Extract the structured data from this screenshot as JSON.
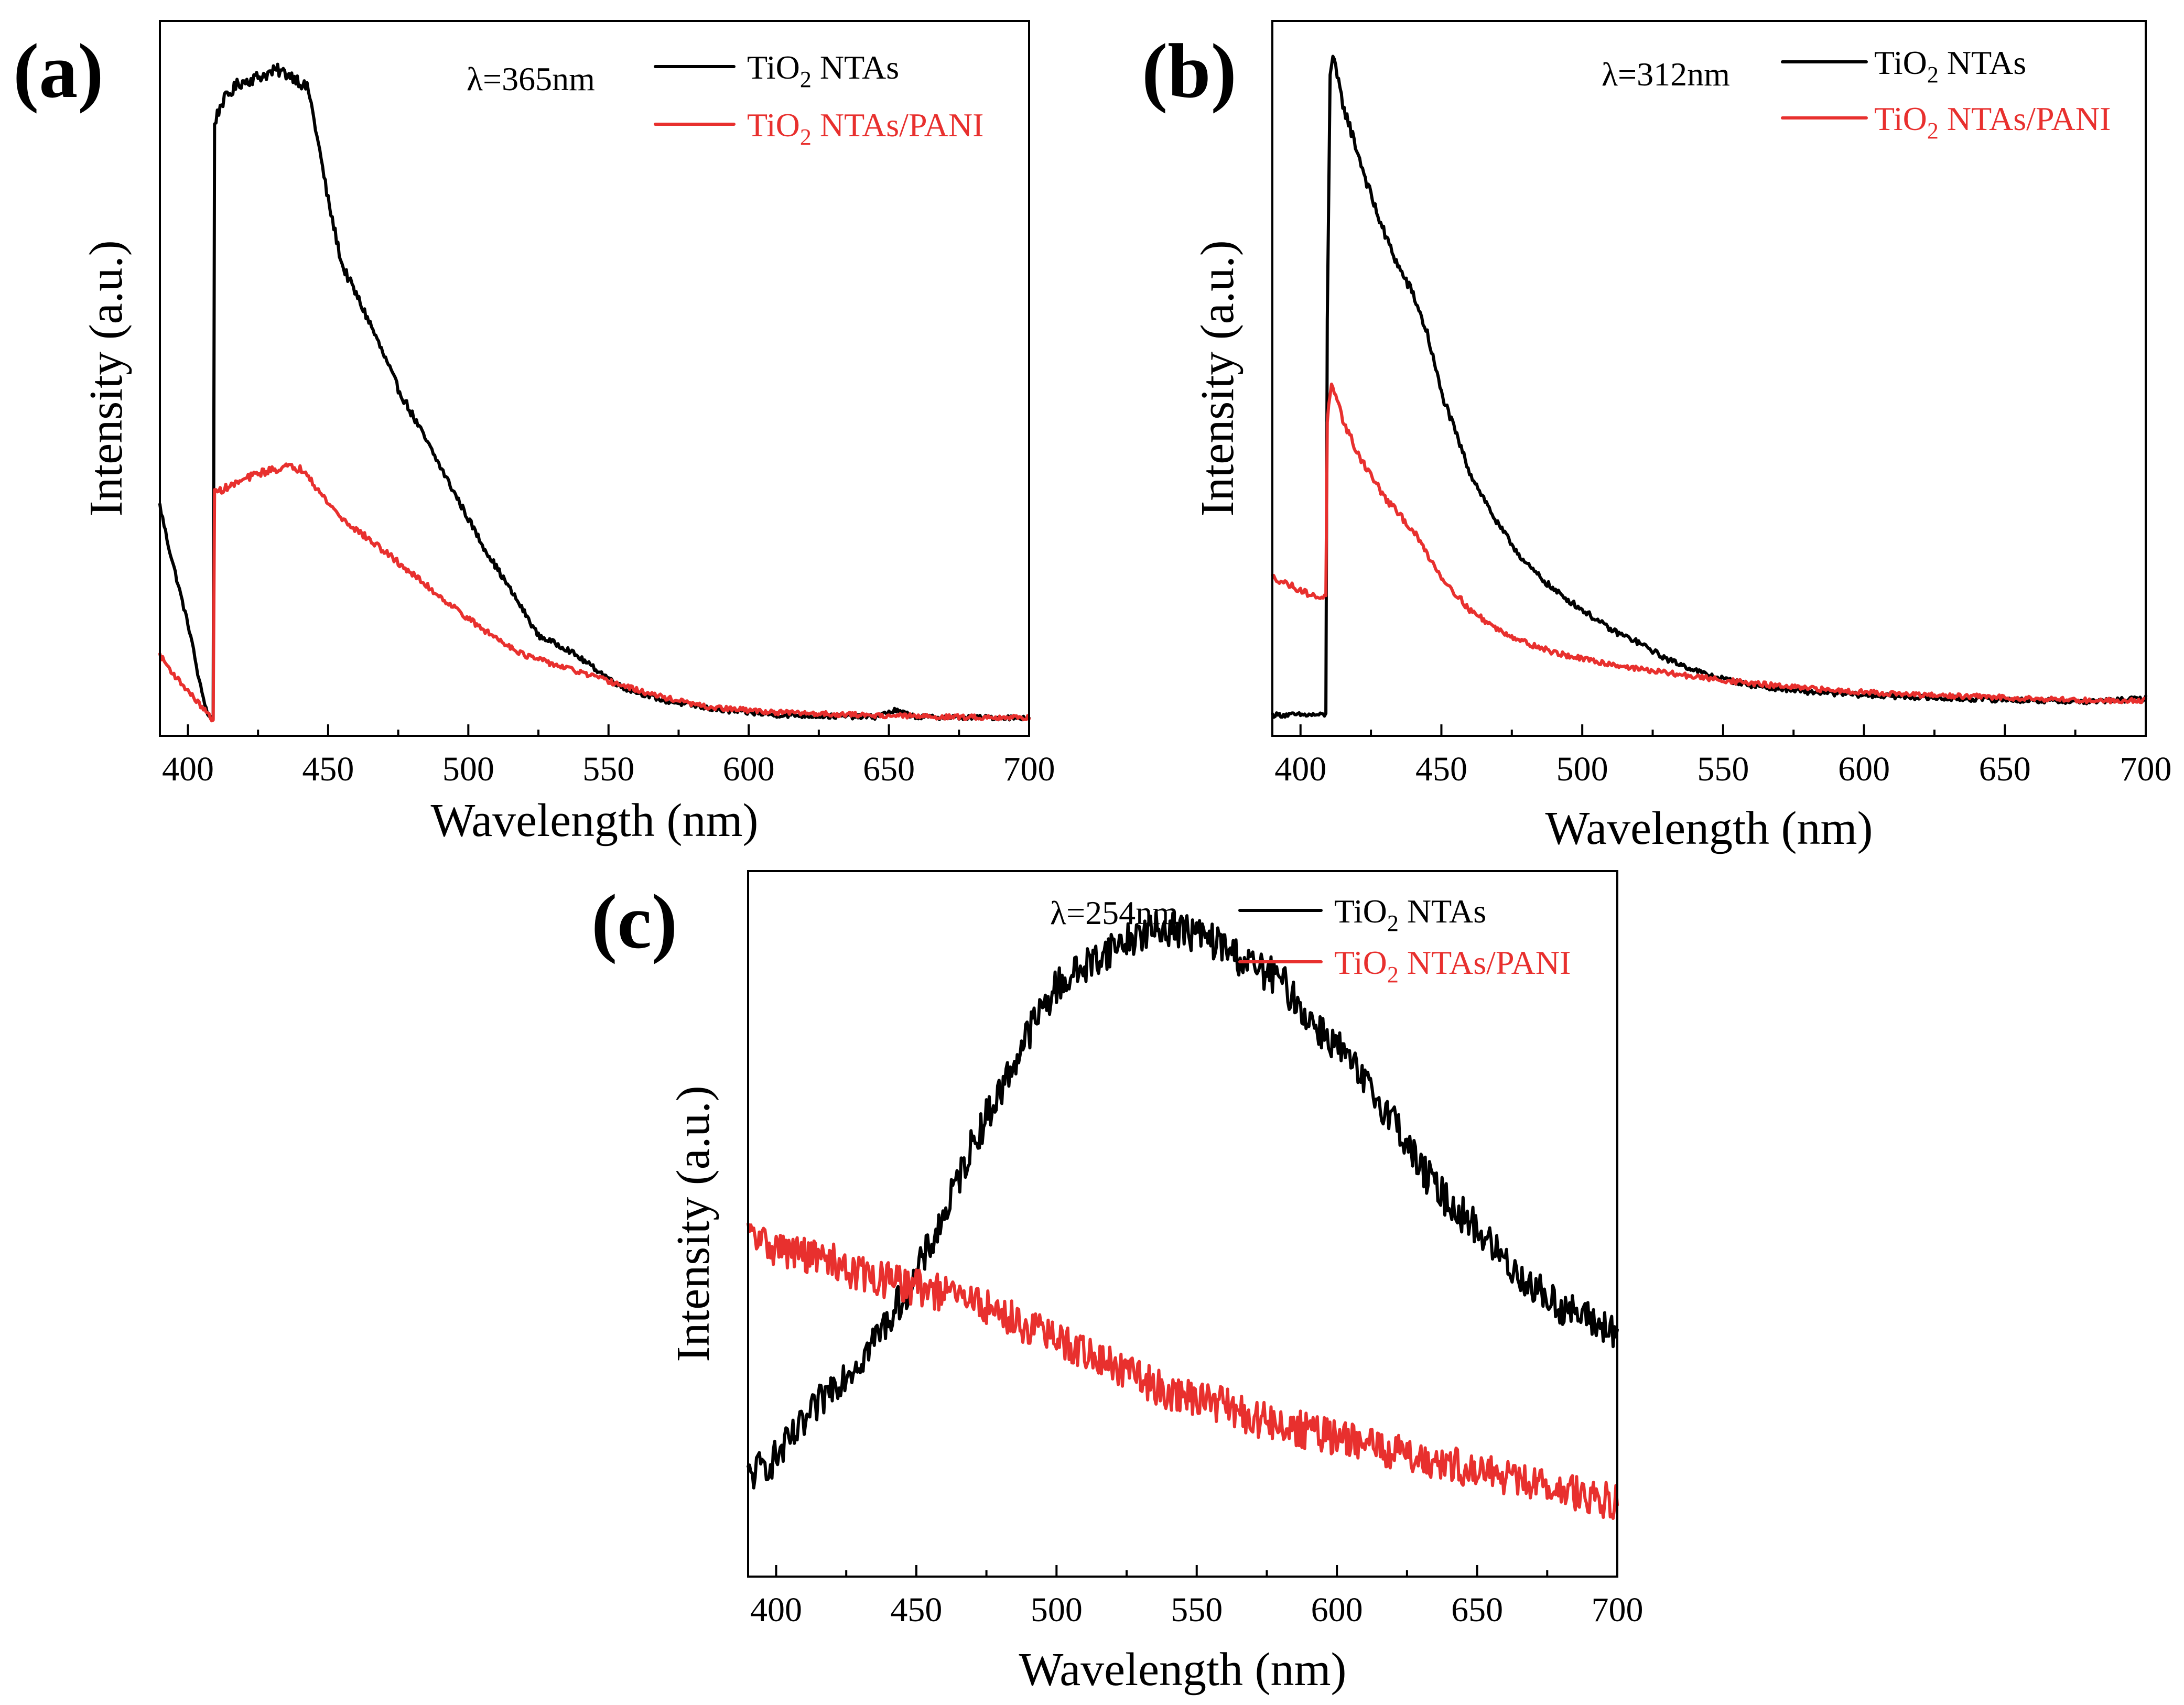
{
  "figure": {
    "colors": {
      "tio2": "#000000",
      "pani": "#e8302e"
    }
  },
  "chart_data": [
    {
      "type": "line",
      "id": "a",
      "panel_label": "(a)",
      "excitation": "λ=365nm",
      "xlabel": "Wavelength (nm)",
      "ylabel": "Intensity (a.u.)",
      "xlim": [
        390,
        700
      ],
      "ylim": [
        0,
        1.06
      ],
      "xticks": [
        400,
        450,
        500,
        550,
        600,
        650,
        700
      ],
      "yticks_labeled": false,
      "legend_position": "top-right",
      "noise": 0.006,
      "series": [
        {
          "name_main": "TiO",
          "name_sub": "2",
          "name_rest": " NTAs",
          "color": "#000000",
          "points": [
            [
              390,
              0.33
            ],
            [
              393,
              0.27
            ],
            [
              397,
              0.2
            ],
            [
              401,
              0.13
            ],
            [
              404,
              0.06
            ],
            [
              407,
              0.01
            ],
            [
              409,
              0.0
            ],
            [
              409.5,
              0.92
            ],
            [
              412,
              0.95
            ],
            [
              418,
              0.98
            ],
            [
              425,
              0.99
            ],
            [
              432,
              1.0
            ],
            [
              438,
              0.99
            ],
            [
              443,
              0.97
            ],
            [
              446,
              0.9
            ],
            [
              450,
              0.8
            ],
            [
              455,
              0.7
            ],
            [
              465,
              0.61
            ],
            [
              475,
              0.51
            ],
            [
              490,
              0.39
            ],
            [
              505,
              0.27
            ],
            [
              518,
              0.18
            ],
            [
              525,
              0.13
            ],
            [
              535,
              0.11
            ],
            [
              545,
              0.08
            ],
            [
              555,
              0.05
            ],
            [
              570,
              0.03
            ],
            [
              590,
              0.015
            ],
            [
              610,
              0.008
            ],
            [
              630,
              0.006
            ],
            [
              645,
              0.005
            ],
            [
              652,
              0.015
            ],
            [
              660,
              0.005
            ],
            [
              680,
              0.004
            ],
            [
              700,
              0.004
            ]
          ]
        },
        {
          "name_main": "TiO",
          "name_sub": "2",
          "name_rest": " NTAs/PANI",
          "color": "#e8302e",
          "points": [
            [
              390,
              0.1
            ],
            [
              395,
              0.07
            ],
            [
              400,
              0.045
            ],
            [
              405,
              0.02
            ],
            [
              409,
              0.0
            ],
            [
              409.5,
              0.35
            ],
            [
              415,
              0.36
            ],
            [
              425,
              0.38
            ],
            [
              435,
              0.39
            ],
            [
              442,
              0.385
            ],
            [
              447,
              0.35
            ],
            [
              455,
              0.31
            ],
            [
              470,
              0.26
            ],
            [
              490,
              0.19
            ],
            [
              505,
              0.14
            ],
            [
              520,
              0.1
            ],
            [
              535,
              0.08
            ],
            [
              550,
              0.06
            ],
            [
              565,
              0.04
            ],
            [
              585,
              0.02
            ],
            [
              610,
              0.012
            ],
            [
              640,
              0.008
            ],
            [
              670,
              0.005
            ],
            [
              700,
              0.004
            ]
          ]
        }
      ]
    },
    {
      "type": "line",
      "id": "b",
      "panel_label": "(b)",
      "excitation": "λ=312nm",
      "xlabel": "Wavelength (nm)",
      "ylabel": "Intensity (a.u.)",
      "xlim": [
        390,
        700
      ],
      "ylim": [
        0,
        1.04
      ],
      "xticks": [
        400,
        450,
        500,
        550,
        600,
        650,
        700
      ],
      "yticks_labeled": false,
      "legend_position": "top-right",
      "noise": 0.006,
      "series": [
        {
          "name_main": "TiO",
          "name_sub": "2",
          "name_rest": " NTAs",
          "color": "#000000",
          "points": [
            [
              390,
              0.0
            ],
            [
              400,
              0.0
            ],
            [
              409,
              0.0
            ],
            [
              409.5,
              0.6
            ],
            [
              410.5,
              0.98
            ],
            [
              411.5,
              1.0
            ],
            [
              415,
              0.93
            ],
            [
              420,
              0.86
            ],
            [
              425,
              0.79
            ],
            [
              430,
              0.73
            ],
            [
              435,
              0.68
            ],
            [
              440,
              0.64
            ],
            [
              445,
              0.58
            ],
            [
              450,
              0.49
            ],
            [
              460,
              0.37
            ],
            [
              470,
              0.29
            ],
            [
              480,
              0.23
            ],
            [
              490,
              0.19
            ],
            [
              500,
              0.16
            ],
            [
              510,
              0.13
            ],
            [
              520,
              0.11
            ],
            [
              530,
              0.085
            ],
            [
              545,
              0.06
            ],
            [
              560,
              0.045
            ],
            [
              580,
              0.035
            ],
            [
              600,
              0.03
            ],
            [
              630,
              0.025
            ],
            [
              660,
              0.022
            ],
            [
              680,
              0.02
            ],
            [
              700,
              0.025
            ]
          ]
        },
        {
          "name_main": "TiO",
          "name_sub": "2",
          "name_rest": " NTAs/PANI",
          "color": "#e8302e",
          "points": [
            [
              390,
              0.21
            ],
            [
              395,
              0.2
            ],
            [
              400,
              0.19
            ],
            [
              405,
              0.18
            ],
            [
              409,
              0.18
            ],
            [
              409.5,
              0.45
            ],
            [
              411,
              0.5
            ],
            [
              415,
              0.45
            ],
            [
              420,
              0.4
            ],
            [
              430,
              0.33
            ],
            [
              440,
              0.28
            ],
            [
              450,
              0.21
            ],
            [
              460,
              0.16
            ],
            [
              470,
              0.13
            ],
            [
              480,
              0.11
            ],
            [
              490,
              0.095
            ],
            [
              500,
              0.085
            ],
            [
              520,
              0.07
            ],
            [
              540,
              0.058
            ],
            [
              560,
              0.048
            ],
            [
              580,
              0.04
            ],
            [
              600,
              0.035
            ],
            [
              620,
              0.03
            ],
            [
              640,
              0.028
            ],
            [
              660,
              0.025
            ],
            [
              680,
              0.022
            ],
            [
              700,
              0.022
            ]
          ]
        }
      ]
    },
    {
      "type": "line",
      "id": "c",
      "panel_label": "(c)",
      "excitation": "λ=254nm",
      "xlabel": "Wavelength (nm)",
      "ylabel": "Intensity (a.u.)",
      "xlim": [
        390,
        700
      ],
      "ylim": [
        0,
        1.03
      ],
      "xticks": [
        400,
        450,
        500,
        550,
        600,
        650,
        700
      ],
      "yticks_labeled": false,
      "legend_position": "top-right",
      "noise": 0.028,
      "series": [
        {
          "name_main": "TiO",
          "name_sub": "2",
          "name_rest": " NTAs",
          "color": "#000000",
          "points": [
            [
              390,
              0.12
            ],
            [
              400,
              0.15
            ],
            [
              410,
              0.2
            ],
            [
              420,
              0.26
            ],
            [
              430,
              0.3
            ],
            [
              440,
              0.36
            ],
            [
              450,
              0.43
            ],
            [
              460,
              0.52
            ],
            [
              470,
              0.63
            ],
            [
              480,
              0.71
            ],
            [
              490,
              0.8
            ],
            [
              500,
              0.87
            ],
            [
              510,
              0.9
            ],
            [
              520,
              0.93
            ],
            [
              530,
              0.95
            ],
            [
              540,
              0.96
            ],
            [
              550,
              0.95
            ],
            [
              560,
              0.93
            ],
            [
              570,
              0.9
            ],
            [
              580,
              0.88
            ],
            [
              590,
              0.82
            ],
            [
              600,
              0.78
            ],
            [
              610,
              0.72
            ],
            [
              620,
              0.67
            ],
            [
              630,
              0.59
            ],
            [
              640,
              0.54
            ],
            [
              650,
              0.5
            ],
            [
              660,
              0.45
            ],
            [
              670,
              0.41
            ],
            [
              680,
              0.38
            ],
            [
              690,
              0.36
            ],
            [
              700,
              0.34
            ]
          ]
        },
        {
          "name_main": "TiO",
          "name_sub": "2",
          "name_rest": " NTAs/PANI",
          "color": "#e8302e",
          "points": [
            [
              390,
              0.49
            ],
            [
              400,
              0.47
            ],
            [
              410,
              0.46
            ],
            [
              420,
              0.45
            ],
            [
              430,
              0.43
            ],
            [
              440,
              0.42
            ],
            [
              450,
              0.41
            ],
            [
              460,
              0.4
            ],
            [
              470,
              0.39
            ],
            [
              480,
              0.37
            ],
            [
              490,
              0.35
            ],
            [
              500,
              0.33
            ],
            [
              510,
              0.31
            ],
            [
              520,
              0.29
            ],
            [
              530,
              0.27
            ],
            [
              540,
              0.25
            ],
            [
              550,
              0.24
            ],
            [
              560,
              0.23
            ],
            [
              570,
              0.21
            ],
            [
              580,
              0.2
            ],
            [
              590,
              0.19
            ],
            [
              600,
              0.18
            ],
            [
              610,
              0.17
            ],
            [
              620,
              0.16
            ],
            [
              630,
              0.15
            ],
            [
              640,
              0.14
            ],
            [
              650,
              0.13
            ],
            [
              660,
              0.12
            ],
            [
              670,
              0.11
            ],
            [
              680,
              0.1
            ],
            [
              690,
              0.09
            ],
            [
              700,
              0.08
            ]
          ]
        }
      ]
    }
  ]
}
